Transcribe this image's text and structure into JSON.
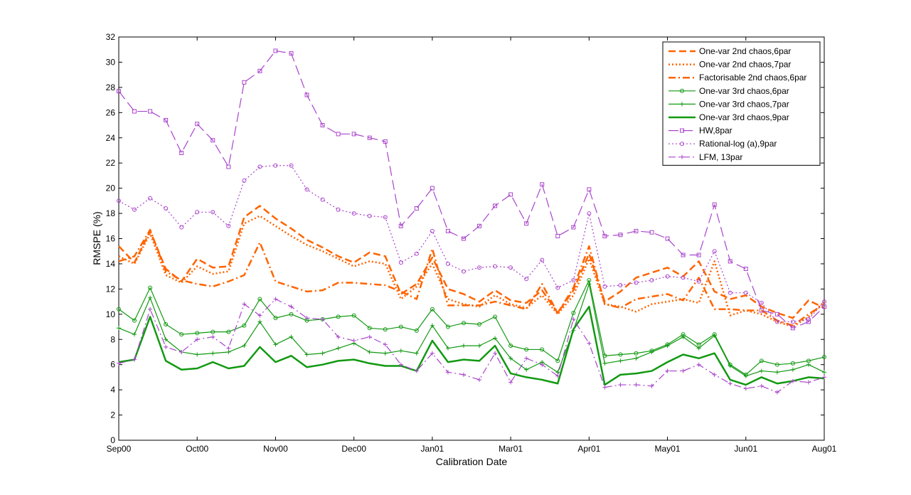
{
  "chart_data": {
    "type": "line",
    "title": "",
    "xlabel": "Calibration Date",
    "ylabel": "RMSPE (%)",
    "xlim": [
      0,
      45
    ],
    "ylim": [
      0,
      32
    ],
    "yticks": [
      0,
      2,
      4,
      6,
      8,
      10,
      12,
      14,
      16,
      18,
      20,
      22,
      24,
      26,
      28,
      30,
      32
    ],
    "xticks": [
      {
        "x": 0,
        "label": "Sep00"
      },
      {
        "x": 5,
        "label": "Oct00"
      },
      {
        "x": 10,
        "label": "Nov00"
      },
      {
        "x": 15,
        "label": "Dec00"
      },
      {
        "x": 20,
        "label": "Jan01"
      },
      {
        "x": 25,
        "label": "Mar01"
      },
      {
        "x": 30,
        "label": "Apr01"
      },
      {
        "x": 35,
        "label": "May01"
      },
      {
        "x": 40,
        "label": "Jun01"
      },
      {
        "x": 45,
        "label": "Aug01"
      }
    ],
    "grid": false,
    "legend_position": "top-right",
    "series": [
      {
        "name": "One-var 2nd chaos,6par",
        "color": "#ff6400",
        "dash": "dashed",
        "marker": "none",
        "width": 2.5,
        "values": [
          15.4,
          14.1,
          16.6,
          13.6,
          12.6,
          14.4,
          13.7,
          13.8,
          17.7,
          18.6,
          17.6,
          16.8,
          15.9,
          15.3,
          14.6,
          14.1,
          14.9,
          14.6,
          11.6,
          12.4,
          14.5,
          12.0,
          11.6,
          11.0,
          11.9,
          11.1,
          10.9,
          11.9,
          10.1,
          11.9,
          14.8,
          11.0,
          11.8,
          12.9,
          13.3,
          13.7,
          13.0,
          14.2,
          11.8,
          11.2,
          11.5,
          10.6,
          10.1,
          9.7,
          11.1,
          10.5
        ]
      },
      {
        "name": "One-var 2nd chaos,7par",
        "color": "#ff6400",
        "dash": "dotted",
        "marker": "none",
        "width": 2.5,
        "values": [
          14.6,
          14.0,
          16.4,
          13.1,
          12.5,
          13.8,
          13.2,
          13.4,
          17.2,
          17.8,
          17.0,
          16.2,
          15.5,
          15.0,
          14.4,
          13.8,
          14.2,
          14.0,
          11.2,
          12.2,
          14.0,
          11.2,
          10.8,
          10.6,
          11.5,
          10.8,
          10.5,
          11.5,
          10.0,
          11.5,
          14.4,
          10.8,
          10.6,
          10.2,
          10.8,
          11.0,
          11.2,
          10.9,
          14.2,
          9.9,
          10.3,
          10.0,
          9.4,
          9.0,
          9.8,
          11.0
        ]
      },
      {
        "name": "Factorisable 2nd chaos,6par",
        "color": "#ff6400",
        "dash": "dashdot",
        "marker": "none",
        "width": 2.5,
        "values": [
          14.2,
          14.6,
          16.7,
          13.4,
          12.7,
          12.4,
          12.2,
          12.6,
          13.1,
          15.7,
          12.6,
          12.2,
          11.8,
          11.9,
          12.5,
          12.5,
          12.4,
          12.3,
          11.8,
          11.2,
          15.2,
          10.7,
          10.7,
          10.7,
          11.0,
          10.7,
          10.4,
          12.4,
          10.1,
          12.1,
          15.4,
          10.8,
          10.5,
          11.2,
          11.4,
          11.6,
          11.1,
          12.9,
          10.4,
          10.4,
          10.3,
          10.3,
          9.5,
          9.1,
          10.0,
          10.8
        ]
      },
      {
        "name": "One-var 3rd chaos,6par",
        "color": "#119911",
        "dash": "solid",
        "marker": "circle",
        "width": 1.2,
        "values": [
          10.4,
          9.5,
          12.1,
          9.2,
          8.4,
          8.5,
          8.6,
          8.6,
          9.1,
          11.2,
          9.7,
          10.0,
          9.5,
          9.6,
          9.8,
          9.9,
          8.9,
          8.8,
          9.0,
          8.7,
          10.4,
          9.0,
          9.3,
          9.2,
          9.8,
          7.5,
          7.2,
          7.2,
          6.3,
          10.1,
          12.7,
          6.7,
          6.8,
          6.9,
          7.1,
          7.6,
          8.4,
          7.6,
          8.4,
          6.0,
          5.2,
          6.3,
          6.0,
          6.1,
          6.3,
          6.6
        ]
      },
      {
        "name": "One-var 3rd chaos,7par",
        "color": "#119911",
        "dash": "solid",
        "marker": "plus",
        "width": 1.2,
        "values": [
          8.9,
          8.4,
          11.3,
          8.0,
          7.0,
          6.8,
          6.9,
          7.0,
          7.5,
          9.4,
          7.6,
          8.2,
          6.8,
          6.9,
          7.3,
          7.7,
          7.0,
          6.9,
          7.1,
          6.9,
          9.1,
          7.3,
          7.5,
          7.5,
          8.1,
          6.5,
          5.6,
          6.2,
          5.4,
          8.7,
          12.4,
          6.1,
          6.3,
          6.5,
          7.0,
          7.5,
          8.2,
          7.3,
          8.3,
          5.9,
          5.1,
          5.5,
          5.4,
          5.6,
          6.0,
          5.4
        ]
      },
      {
        "name": "One-var 3rd chaos,9par",
        "color": "#119911",
        "dash": "solid",
        "marker": "none",
        "width": 2.5,
        "values": [
          6.2,
          6.4,
          9.8,
          6.3,
          5.6,
          5.7,
          6.2,
          5.7,
          5.9,
          7.4,
          6.2,
          6.7,
          5.8,
          6.0,
          6.3,
          6.4,
          6.1,
          5.9,
          5.9,
          5.5,
          7.9,
          6.2,
          6.4,
          6.3,
          7.5,
          5.3,
          5.0,
          4.8,
          4.5,
          8.8,
          10.6,
          4.4,
          5.2,
          5.3,
          5.5,
          6.2,
          6.8,
          6.5,
          6.9,
          4.8,
          4.4,
          5.0,
          4.5,
          4.7,
          5.0,
          4.9
        ]
      },
      {
        "name": "HW,8par",
        "color": "#aa44cc",
        "dash": "longdash",
        "marker": "square",
        "width": 1.2,
        "values": [
          27.7,
          26.1,
          26.1,
          25.4,
          22.8,
          25.1,
          23.8,
          21.7,
          28.4,
          29.3,
          30.9,
          30.7,
          27.4,
          25.0,
          24.3,
          24.3,
          24.0,
          23.7,
          17.0,
          18.4,
          20.0,
          16.6,
          16.0,
          17.0,
          18.6,
          19.5,
          17.2,
          20.3,
          16.2,
          16.9,
          19.9,
          16.2,
          16.3,
          16.6,
          16.5,
          16.0,
          14.7,
          14.7,
          18.7,
          14.2,
          13.6,
          10.3,
          10.0,
          8.9,
          9.4,
          10.6
        ]
      },
      {
        "name": "Rational-log (a),9par",
        "color": "#aa44cc",
        "dash": "dotted",
        "marker": "circle",
        "width": 1.2,
        "values": [
          19.0,
          18.3,
          19.2,
          18.4,
          16.9,
          18.1,
          18.1,
          17.0,
          20.6,
          21.7,
          21.8,
          21.8,
          19.9,
          19.1,
          18.3,
          18.0,
          17.8,
          17.7,
          14.1,
          14.8,
          16.6,
          14.0,
          13.4,
          13.7,
          13.8,
          13.7,
          12.8,
          14.3,
          12.1,
          12.7,
          18.0,
          12.2,
          12.3,
          12.5,
          12.7,
          13.0,
          12.9,
          12.6,
          15.0,
          11.7,
          11.7,
          10.9,
          9.4,
          9.4,
          9.6,
          11.0
        ]
      },
      {
        "name": "LFM, 13par",
        "color": "#aa44cc",
        "dash": "dashdot",
        "marker": "plus",
        "width": 1.2,
        "values": [
          6.1,
          6.4,
          10.4,
          7.4,
          7.0,
          8.0,
          8.2,
          7.3,
          10.8,
          9.9,
          11.2,
          10.6,
          9.7,
          9.6,
          8.2,
          7.9,
          8.2,
          7.6,
          6.0,
          5.5,
          6.9,
          5.4,
          5.2,
          4.8,
          6.9,
          4.6,
          6.5,
          6.0,
          5.1,
          9.6,
          7.7,
          4.2,
          4.4,
          4.4,
          4.3,
          5.5,
          5.5,
          6.0,
          5.2,
          4.5,
          4.1,
          4.3,
          3.8,
          4.7,
          4.6,
          5.0
        ]
      }
    ]
  }
}
